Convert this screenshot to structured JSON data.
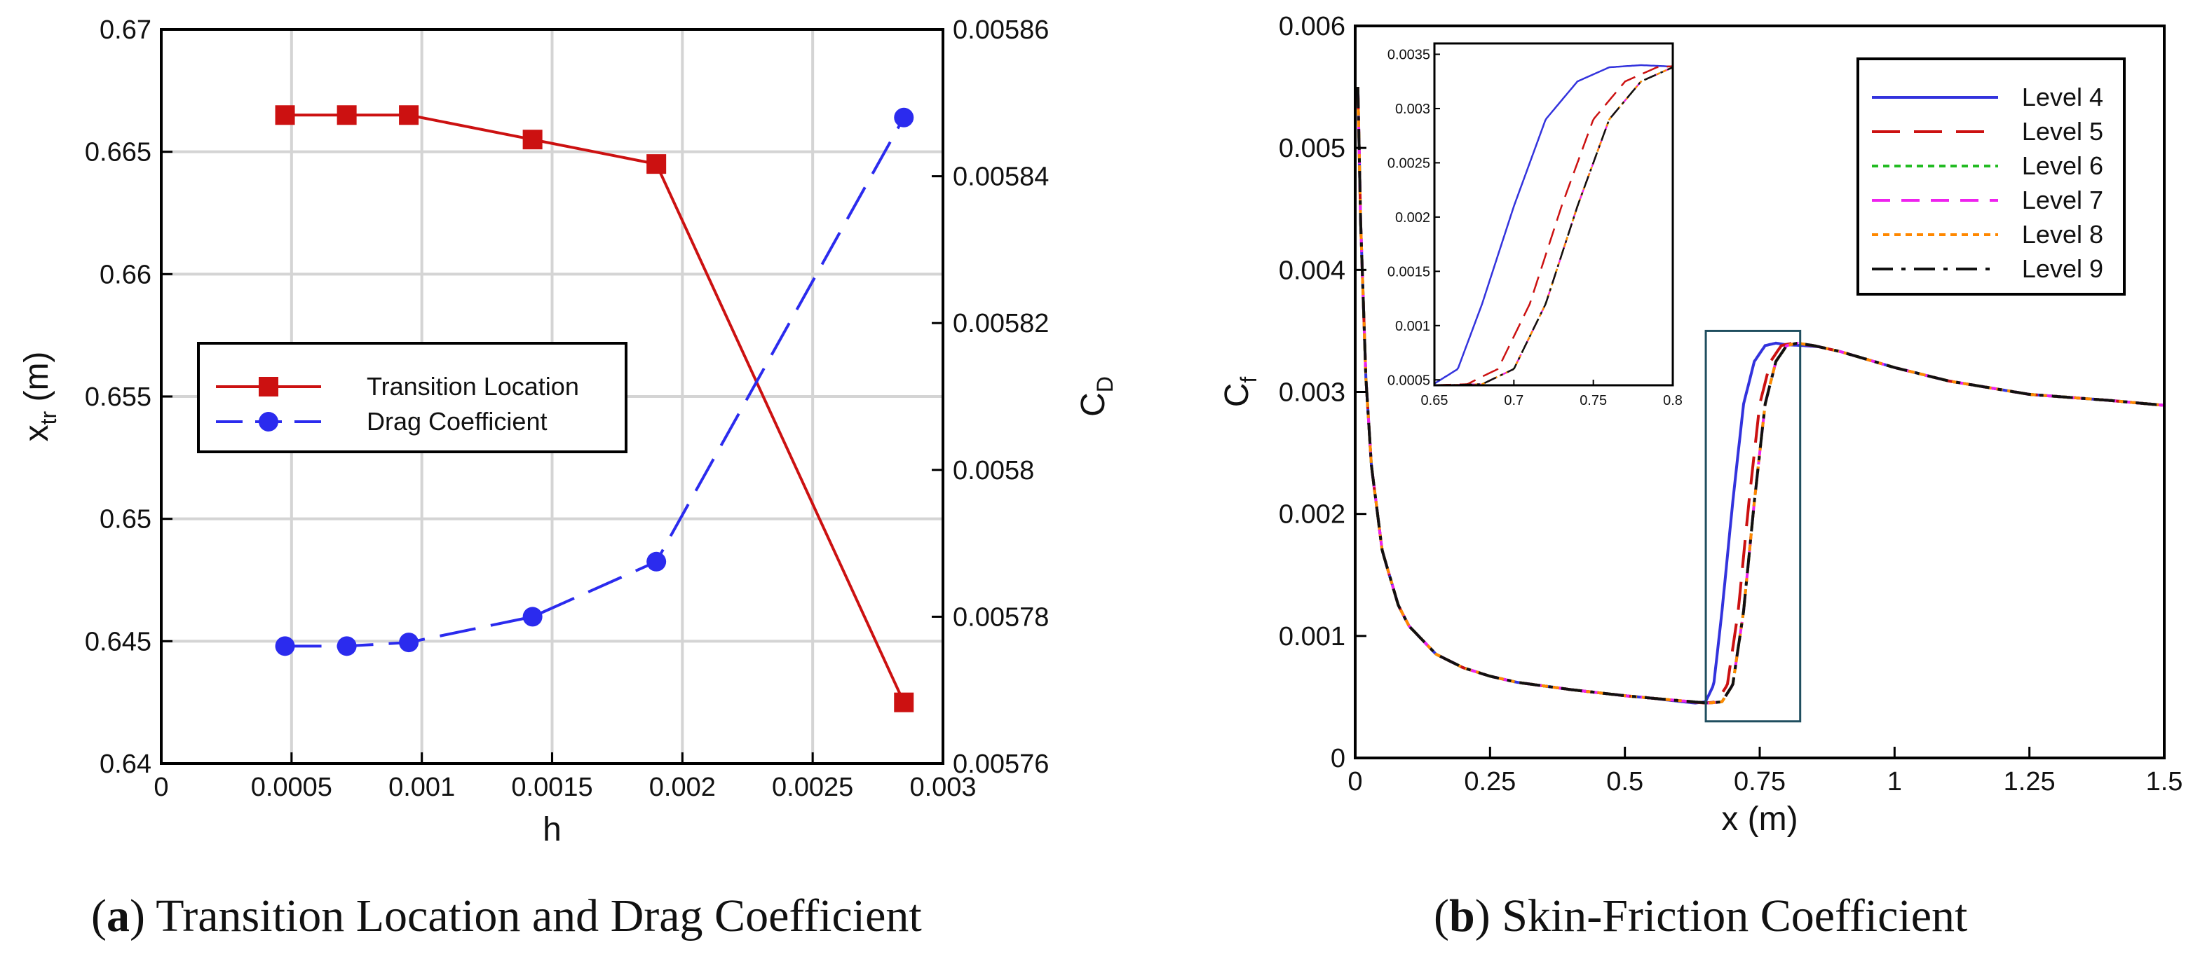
{
  "chart_data": [
    {
      "type": "line",
      "title": "",
      "caption_letter": "a",
      "caption_text": "Transition Location and Drag Coefficient",
      "xlabel": "h",
      "ylabel_main": "x",
      "ylabel_sub": "tr",
      "ylabel_unit": " (m)",
      "y2label_main": "C",
      "y2label_sub": "D",
      "xlim": [
        0,
        0.003
      ],
      "ylim": [
        0.64,
        0.67
      ],
      "y2lim": [
        0.00576,
        0.00586
      ],
      "grid": true,
      "xticks": [
        "0",
        "0.0005",
        "0.001",
        "0.0015",
        "0.002",
        "0.0025",
        "0.003"
      ],
      "yticks": [
        "0.64",
        "0.645",
        "0.65",
        "0.655",
        "0.66",
        "0.665",
        "0.67"
      ],
      "y2ticks": [
        "0.00576",
        "0.00578",
        "0.0058",
        "0.00582",
        "0.00584",
        "0.00586"
      ],
      "legend_position": "center-left",
      "series": [
        {
          "name": "Transition Location",
          "axis": "left",
          "color": "#cc1111",
          "marker": "square",
          "style": "solid",
          "x": [
            0.000475,
            0.000712,
            0.00095,
            0.001425,
            0.0019,
            0.00285
          ],
          "y": [
            0.6665,
            0.6665,
            0.6665,
            0.6655,
            0.6645,
            0.6425
          ]
        },
        {
          "name": "Drag Coefficient",
          "axis": "right",
          "color": "#2b2bee",
          "marker": "circle",
          "style": "dashed",
          "x": [
            0.000475,
            0.000712,
            0.00095,
            0.001425,
            0.0019,
            0.00285
          ],
          "y": [
            0.005776,
            0.005776,
            0.0057765,
            0.00578,
            0.0057875,
            0.005848
          ]
        }
      ]
    },
    {
      "type": "line",
      "title": "",
      "caption_letter": "b",
      "caption_text": "Skin-Friction Coefficient",
      "xlabel": "x (m)",
      "ylabel_main": "C",
      "ylabel_sub": "f",
      "xlim": [
        0,
        1.5
      ],
      "ylim": [
        0,
        0.006
      ],
      "grid": false,
      "xticks": [
        "0",
        "0.25",
        "0.5",
        "0.75",
        "1",
        "1.25",
        "1.5"
      ],
      "yticks": [
        "0",
        "0.001",
        "0.002",
        "0.003",
        "0.004",
        "0.005",
        "0.006"
      ],
      "legend_position": "top-right",
      "series": [
        {
          "name": "Level 4",
          "color": "#3333dd",
          "style": "solid",
          "shift": -0.04
        },
        {
          "name": "Level 5",
          "color": "#cc1111",
          "style": "long-dash",
          "shift": -0.01
        },
        {
          "name": "Level 6",
          "color": "#22bb22",
          "style": "dotted",
          "shift": 0.0
        },
        {
          "name": "Level 7",
          "color": "#ee22ee",
          "style": "dashed",
          "shift": 0.0
        },
        {
          "name": "Level 8",
          "color": "#ff8800",
          "style": "dotted",
          "shift": 0.0
        },
        {
          "name": "Level 9",
          "color": "#111111",
          "style": "dash-dot",
          "shift": 0.0
        }
      ],
      "base_curve": {
        "x": [
          0.005,
          0.01,
          0.02,
          0.03,
          0.05,
          0.08,
          0.1,
          0.15,
          0.2,
          0.25,
          0.3,
          0.4,
          0.5,
          0.6,
          0.655,
          0.68,
          0.7,
          0.72,
          0.74,
          0.76,
          0.78,
          0.8,
          0.82,
          0.85,
          0.9,
          1.0,
          1.1,
          1.25,
          1.4,
          1.5
        ],
        "y": [
          0.0055,
          0.0044,
          0.0031,
          0.0024,
          0.0017,
          0.00125,
          0.00108,
          0.00085,
          0.00074,
          0.00067,
          0.00062,
          0.00056,
          0.00051,
          0.00047,
          0.00045,
          0.00046,
          0.0006,
          0.0012,
          0.0021,
          0.0029,
          0.00325,
          0.00338,
          0.0034,
          0.00338,
          0.00333,
          0.0032,
          0.00309,
          0.00298,
          0.00293,
          0.00289
        ]
      },
      "zoom_box": {
        "xlim": [
          0.65,
          0.825
        ],
        "ylim": [
          0.0003,
          0.0035
        ]
      },
      "inset": {
        "xlim": [
          0.65,
          0.8
        ],
        "ylim": [
          0.00045,
          0.0036
        ],
        "xticks": [
          "0.65",
          "0.7",
          "0.75",
          "0.8"
        ],
        "yticks": [
          "0.0005",
          "0.001",
          "0.0015",
          "0.002",
          "0.0025",
          "0.003",
          "0.0035"
        ]
      }
    }
  ]
}
